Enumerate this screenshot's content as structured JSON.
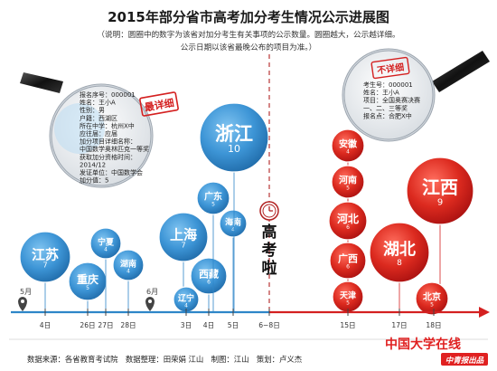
{
  "header": {
    "title": "2015年部分省市高考加分考生情况公示进展图",
    "note_line1": "（说明：圆圈中的数字为该省对加分考生有关事项的公示数量。圆圈越大，公示越详细。",
    "note_line2": "公示日期以该省最晚公布的项目为准。）"
  },
  "stamps": {
    "most_detailed": "最详细",
    "not_detailed": "不详细"
  },
  "card_left": [
    "报名序号：000001",
    "姓名：王小A",
    "性别：男",
    "户籍：西湖区",
    "所在中学：杭州X中",
    "应往届：应届",
    "加分项目详细名称：",
    "中国数学奥林匹克一等奖",
    "获取加分资格时间：",
    "2014/12",
    "发证单位：中国数学会",
    "加分值：5"
  ],
  "card_right": [
    "考生号：000001",
    "姓名：王小A",
    "项目：全国奥赛决赛",
    "一、二、三等奖",
    "报名点：合肥X中"
  ],
  "exam_label": "高考啦",
  "months": {
    "may": "5月",
    "june": "6月"
  },
  "dates": {
    "d4": "4日",
    "d26": "26日",
    "d27": "27日",
    "d28": "28日",
    "d3": "3日",
    "d4b": "4日",
    "d5": "5日",
    "d68": "6−8日",
    "d15": "15日",
    "d17": "17日",
    "d18": "18日"
  },
  "bubbles": [
    {
      "name": "江苏",
      "count": "7"
    },
    {
      "name": "重庆",
      "count": "5"
    },
    {
      "name": "宁夏",
      "count": "4"
    },
    {
      "name": "湖南",
      "count": "4"
    },
    {
      "name": "上海",
      "count": "7"
    },
    {
      "name": "辽宁",
      "count": "4"
    },
    {
      "name": "西藏",
      "count": "6"
    },
    {
      "name": "广东",
      "count": "5"
    },
    {
      "name": "海南",
      "count": "4"
    },
    {
      "name": "浙江",
      "count": "10"
    },
    {
      "name": "安徽",
      "count": "4"
    },
    {
      "name": "河南",
      "count": "5"
    },
    {
      "name": "河北",
      "count": "6"
    },
    {
      "name": "广西",
      "count": "6"
    },
    {
      "name": "天津",
      "count": "5"
    },
    {
      "name": "江西",
      "count": "9"
    },
    {
      "name": "湖北",
      "count": "8"
    },
    {
      "name": "北京",
      "count": "5"
    }
  ],
  "footer": "数据来源：各省教育考试院　数据整理：田荣娟 江山　制图：江山　策划：卢义杰",
  "brand": {
    "main": "中国大学在线",
    "sub": "中青报出品"
  },
  "colors": {
    "blue_bubble": "#2e86c8",
    "red_bubble": "#d42020",
    "timeline_blue": "#2e86c8",
    "timeline_red": "#d42020",
    "stamp_red": "#d42020"
  }
}
